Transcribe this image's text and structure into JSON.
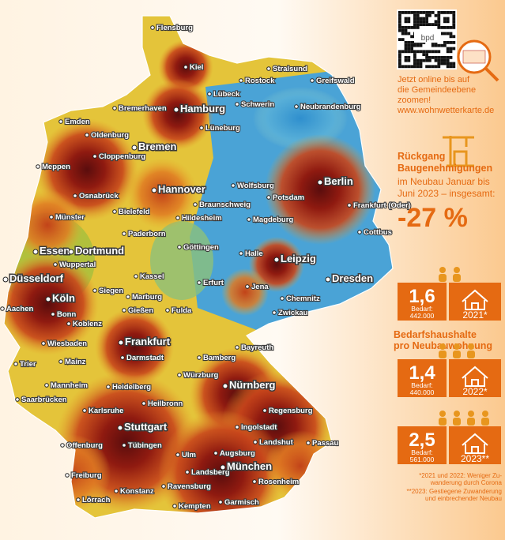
{
  "map": {
    "cities": [
      "Flensburg",
      "Kiel",
      "Stralsund",
      "Rostock",
      "Greifswald",
      "Lübeck",
      "Schwerin",
      "Hamburg",
      "Bremerhaven",
      "Lüneburg",
      "Neubrandenburg",
      "Emden",
      "Oldenburg",
      "Bremen",
      "Cloppenburg",
      "Meppen",
      "Hannover",
      "Wolfsburg",
      "Berlin",
      "Potsdam",
      "Frankfurt (Oder)",
      "Osnabrück",
      "Bielefeld",
      "Braunschweig",
      "Magdeburg",
      "Münster",
      "Hildesheim",
      "Paderborn",
      "Cottbus",
      "Essen",
      "Dortmund",
      "Wuppertal",
      "Göttingen",
      "Halle",
      "Leipzig",
      "Düsseldorf",
      "Kassel",
      "Dresden",
      "Köln",
      "Siegen",
      "Marburg",
      "Erfurt",
      "Jena",
      "Chemnitz",
      "Aachen",
      "Bonn",
      "Gießen",
      "Fulda",
      "Zwickau",
      "Koblenz",
      "Wiesbaden",
      "Frankfurt",
      "Darmstadt",
      "Mainz",
      "Bayreuth",
      "Bamberg",
      "Trier",
      "Würzburg",
      "Nürnberg",
      "Mannheim",
      "Heidelberg",
      "Saarbrücken",
      "Heilbronn",
      "Karlsruhe",
      "Regensburg",
      "Stuttgart",
      "Ingolstadt",
      "Offenburg",
      "Tübingen",
      "Landshut",
      "Passau",
      "Ulm",
      "Augsburg",
      "Freiburg",
      "Landsberg",
      "München",
      "Rosenheim",
      "Konstanz",
      "Ravensburg",
      "Lörrach",
      "Kempten",
      "Garmisch"
    ]
  },
  "promo": {
    "logo": "bpd",
    "lines": [
      "Jetzt online bis auf",
      "die Gemeindeebene",
      "zoomen!"
    ],
    "url": "www.wohnwetterkarte.de"
  },
  "decline": {
    "title": [
      "Rückgang",
      "Baugenehmigungen"
    ],
    "text": [
      "im Neubau Januar bis",
      "Juni 2023 – insgesamt:"
    ],
    "value": "-27 %"
  },
  "demand": {
    "heading": [
      "Bedarfshaushalte",
      "pro Neubauwohnung"
    ],
    "cards": [
      {
        "ratio": "1,6",
        "label": "Bedarf:",
        "need": "442.000",
        "year": "2021*"
      },
      {
        "ratio": "1,4",
        "label": "Bedarf:",
        "need": "440.000",
        "year": "2022*"
      },
      {
        "ratio": "2,5",
        "label": "Bedarf:",
        "need": "561.000",
        "year": "2023**"
      }
    ]
  },
  "footnotes": [
    [
      "*2021 und 2022: Weniger Zu-",
      "wanderung durch Corona"
    ],
    [
      "**2023: Gestiegene Zuwanderung",
      "und einbrechender Neubau"
    ]
  ]
}
